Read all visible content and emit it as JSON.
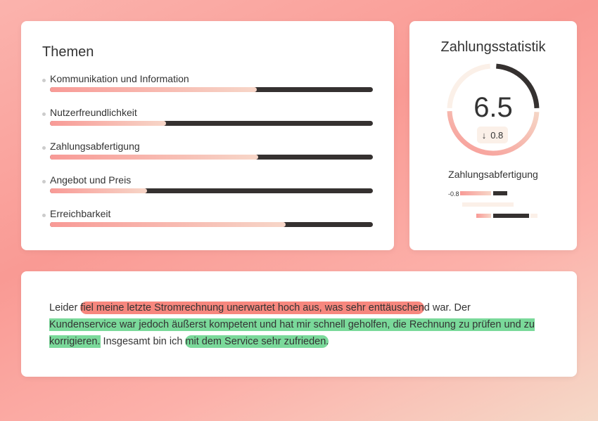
{
  "themes": {
    "title": "Themen",
    "items": [
      {
        "label": "Kommunikation und Information",
        "score": 0.64
      },
      {
        "label": "Nutzerfreundlichkeit",
        "score": 0.36
      },
      {
        "label": "Zahlungsabfertigung",
        "score": 0.645
      },
      {
        "label": "Angebot und Preis",
        "score": 0.3
      },
      {
        "label": "Erreichbarkeit",
        "score": 0.73
      }
    ]
  },
  "stats": {
    "title": "Zahlungsstatistik",
    "score": "6.5",
    "delta_icon": "arrow-down-icon",
    "delta": "0.8",
    "subtitle": "Zahlungsabfertigung",
    "mini_label": "-0.8"
  },
  "colors": {
    "dark": "#353130",
    "pink": "#f89a96",
    "cream": "#fbf0e8",
    "negative": "#f7877e",
    "positive": "#7ad99a"
  },
  "review": {
    "segments": [
      {
        "text": "Leider ",
        "sentiment": "neutral"
      },
      {
        "text": "fiel meine letzte Stromrechnung unerwartet hoch aus, was sehr enttäuschen",
        "sentiment": "negative"
      },
      {
        "text": "d war. Der ",
        "sentiment": "neutral"
      },
      {
        "text": "Kundenservice war jedoch äußerst kompetent und hat mir schnell geholfen, die Rechnung zu prüfen und zu korrigieren.",
        "sentiment": "positive"
      },
      {
        "text": " Insgesamt bin ich ",
        "sentiment": "neutral"
      },
      {
        "text": "mit dem Service sehr zufrieden.",
        "sentiment": "positive"
      }
    ]
  }
}
